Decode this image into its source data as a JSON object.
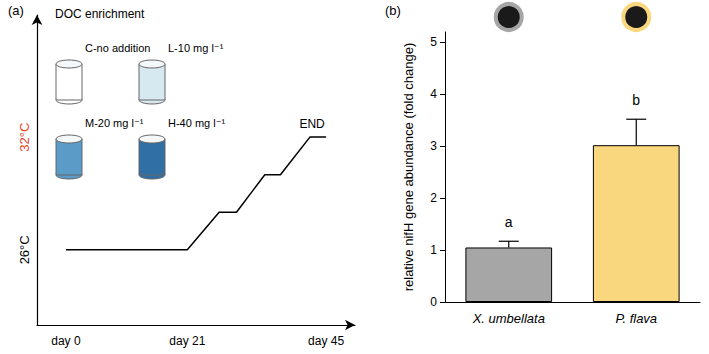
{
  "chart_data": [
    {
      "panel": "(a)",
      "type": "line",
      "title": "DOC enrichment",
      "x": [
        0,
        21,
        26.5,
        29.5,
        34.4,
        37.1,
        42.2,
        45
      ],
      "values": [
        26,
        26,
        28,
        28,
        30,
        30,
        32,
        32
      ],
      "color": "#000000",
      "xlim": [
        -5,
        50
      ],
      "xticks": [
        {
          "value": 0,
          "label": "day 0"
        },
        {
          "value": 21,
          "label": "day 21"
        },
        {
          "value": 45,
          "label": "day 45"
        }
      ],
      "ylim": [
        22,
        38.5
      ],
      "yticks": [
        {
          "value": 26,
          "label": "26°C"
        },
        {
          "value": 32,
          "label": "32°C"
        }
      ],
      "annotation": "END",
      "treatments": [
        {
          "label": "C-no addition",
          "color": "#ffffff"
        },
        {
          "label": "L-10 mg l⁻¹",
          "color": "#d6e8f0"
        },
        {
          "label": "M-20 mg l⁻¹",
          "color": "#5b9bc8"
        },
        {
          "label": "H-40 mg l⁻¹",
          "color": "#2f6fa6"
        }
      ],
      "grid": false
    },
    {
      "panel": "(b)",
      "type": "bar",
      "categories": [
        "X. umbellata",
        "P. flava"
      ],
      "values": [
        1.05,
        3.02
      ],
      "errors": [
        0.12,
        0.5
      ],
      "colors": [
        "#a6a6a6",
        "#f9d77e"
      ],
      "ylabel": "relative nifH gene abundance (fold change)",
      "ylim": [
        0,
        5.2
      ],
      "yticks": [
        0,
        1,
        2,
        3,
        4,
        5
      ],
      "significance": [
        "a",
        "b"
      ],
      "grid": false
    }
  ]
}
